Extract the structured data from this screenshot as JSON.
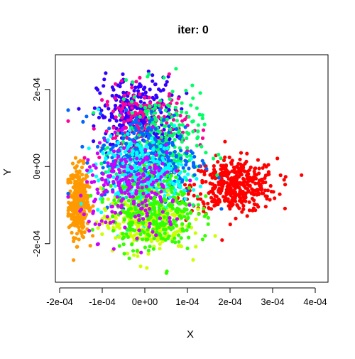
{
  "chart_data": {
    "type": "scatter",
    "title": "iter: 0",
    "xlabel": "X",
    "ylabel": "Y",
    "xlim": [
      -0.00021,
      0.00043
    ],
    "ylim": [
      -0.0003,
      0.00029
    ],
    "x_ticks": [
      -0.0002,
      -0.0001,
      0.0,
      0.0001,
      0.0002,
      0.0003,
      0.0004
    ],
    "x_tick_labels": [
      "-2e-04",
      "-1e-04",
      "0e+00",
      "1e-04",
      "2e-04",
      "3e-04",
      "4e-04"
    ],
    "y_ticks": [
      -0.0002,
      0.0,
      0.0002
    ],
    "y_tick_labels": [
      "-2e-04",
      "0e+00",
      "2e-04"
    ],
    "grid": false,
    "legend": "none",
    "series_colors": [
      "#ff0000",
      "#ff9900",
      "#ccff00",
      "#33ff00",
      "#00ff66",
      "#00ffff",
      "#0066ff",
      "#3300ff",
      "#cc00ff",
      "#ff0099"
    ],
    "clusters": [
      {
        "color": "#ff9900",
        "center": [
          -0.000155,
          -9e-05
        ],
        "spread": [
          1.2e-05,
          4.5e-05
        ],
        "n": 320
      },
      {
        "color": "#ff0000",
        "center": [
          0.00021,
          -5e-05
        ],
        "spread": [
          5e-05,
          3.5e-05
        ],
        "n": 420
      },
      {
        "color": "#3300ff",
        "center": [
          -2e-05,
          0.00013
        ],
        "spread": [
          4.5e-05,
          5e-05
        ],
        "n": 320
      },
      {
        "color": "#ff0099",
        "center": [
          0.0,
          0.00011
        ],
        "spread": [
          5e-05,
          5e-05
        ],
        "n": 180
      },
      {
        "color": "#00ff66",
        "center": [
          3e-05,
          5e-05
        ],
        "spread": [
          5e-05,
          7e-05
        ],
        "n": 320
      },
      {
        "color": "#0066ff",
        "center": [
          1e-05,
          2e-05
        ],
        "spread": [
          6e-05,
          6e-05
        ],
        "n": 300
      },
      {
        "color": "#00ffff",
        "center": [
          -1e-05,
          -3e-05
        ],
        "spread": [
          5e-05,
          5e-05
        ],
        "n": 300
      },
      {
        "color": "#ccff00",
        "center": [
          0.0,
          -0.00014
        ],
        "spread": [
          5e-05,
          4e-05
        ],
        "n": 300
      },
      {
        "color": "#33ff00",
        "center": [
          2e-05,
          -0.00012
        ],
        "spread": [
          5e-05,
          5e-05
        ],
        "n": 300
      },
      {
        "color": "#cc00ff",
        "center": [
          -3e-05,
          -6e-05
        ],
        "spread": [
          6e-05,
          6e-05
        ],
        "n": 220
      }
    ]
  }
}
